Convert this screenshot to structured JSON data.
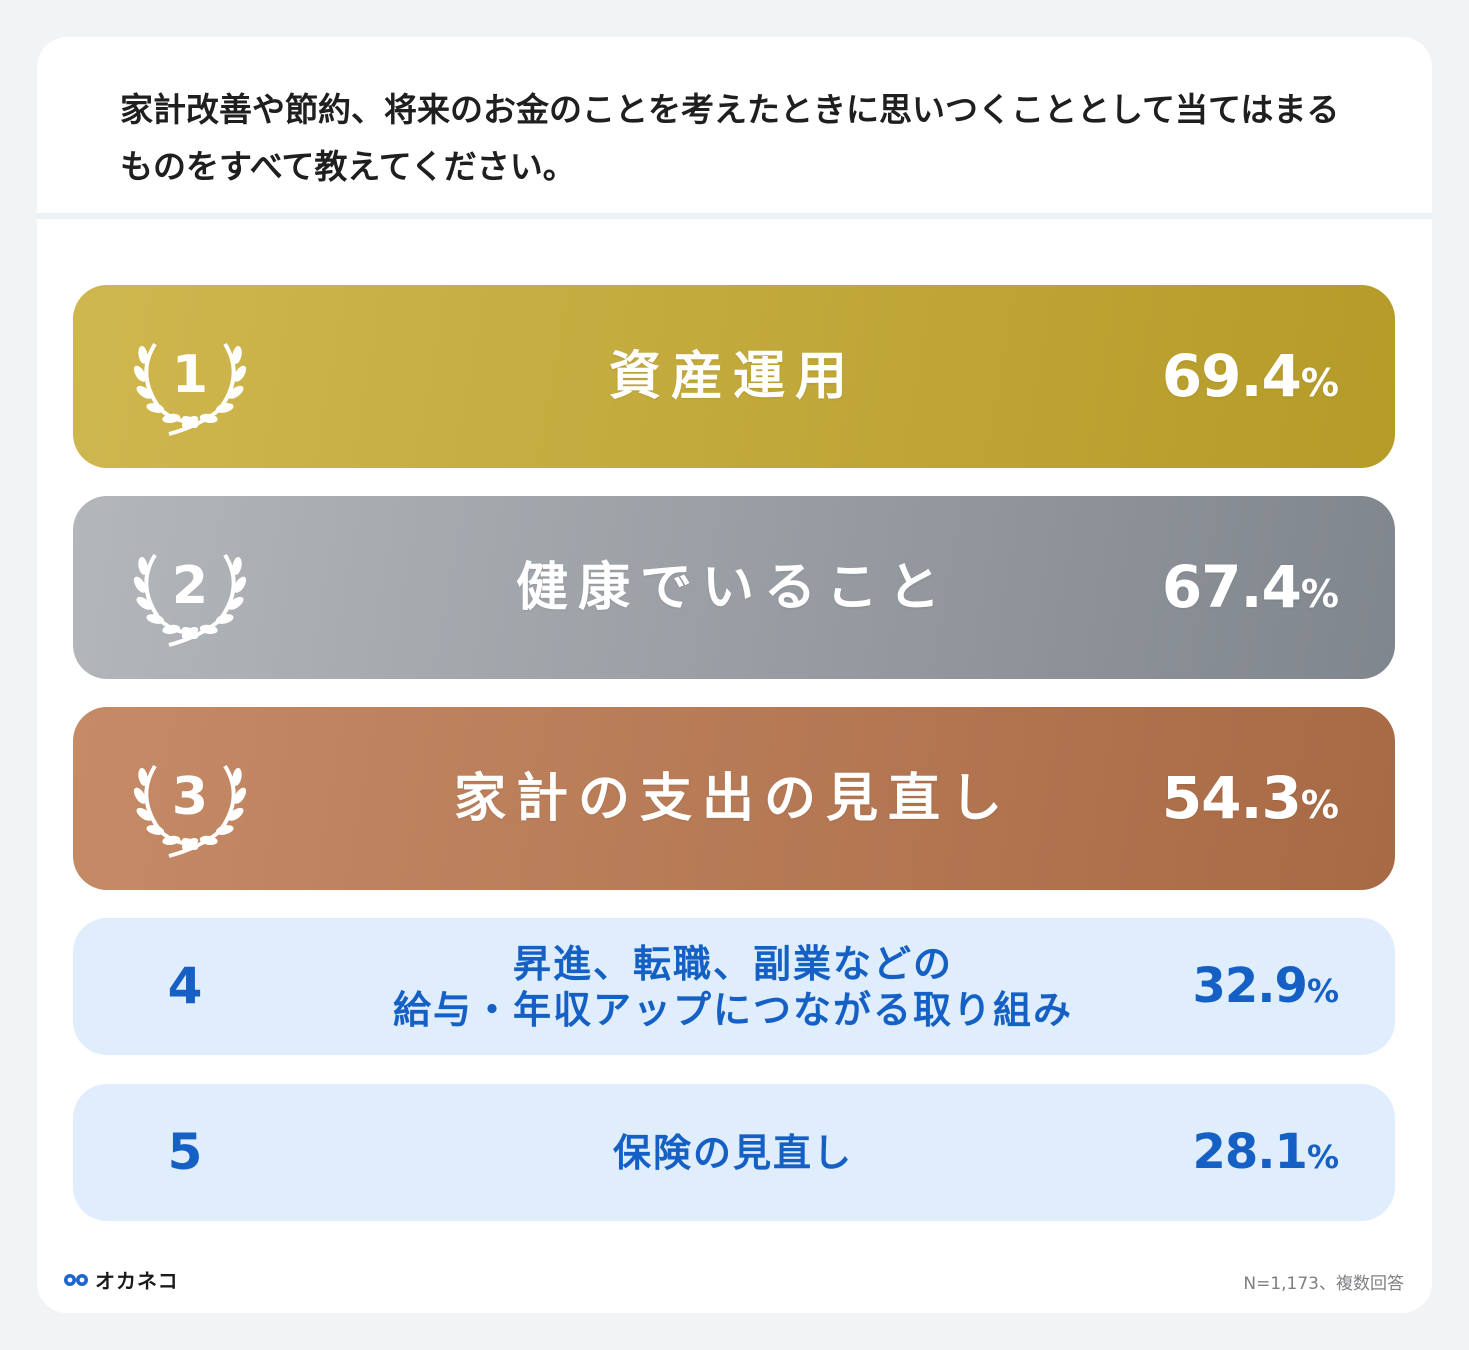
{
  "question": "家計改善や節約、将来のお金のことを考えたときに思いつくこととして当てはまるものをすべて教えてください。",
  "chart_data": {
    "type": "bar",
    "title": "家計改善や節約、将来のお金のことを考えたときに思いつくこととして当てはまるものをすべて教えてください。",
    "unit": "%",
    "items": [
      {
        "rank": "1",
        "label": "資産運用",
        "label_lines": [
          "資産運用"
        ],
        "value": 69.4,
        "value_text": "69.4",
        "style": "gold"
      },
      {
        "rank": "2",
        "label": "健康でいること",
        "label_lines": [
          "健康でいること"
        ],
        "value": 67.4,
        "value_text": "67.4",
        "style": "silver"
      },
      {
        "rank": "3",
        "label": "家計の支出の見直し",
        "label_lines": [
          "家計の支出の見直し"
        ],
        "value": 54.3,
        "value_text": "54.3",
        "style": "bronze"
      },
      {
        "rank": "4",
        "label": "昇進、転職、副業などの給与・年収アップにつながる取り組み",
        "label_lines": [
          "昇進、転職、副業などの",
          "給与・年収アップにつながる取り組み"
        ],
        "value": 32.9,
        "value_text": "32.9",
        "style": "blue"
      },
      {
        "rank": "5",
        "label": "保険の見直し",
        "label_lines": [
          "保険の見直し"
        ],
        "value": 28.1,
        "value_text": "28.1",
        "style": "blue"
      }
    ]
  },
  "colors": {
    "gold": [
      "#cfb74f",
      "#b59b28"
    ],
    "silver": [
      "#b3b7bb",
      "#80868d"
    ],
    "bronze": [
      "#c58a66",
      "#a86a45"
    ],
    "blue": [
      "#e0edfc",
      "#e0edfc"
    ],
    "blue_text": "#1560c4",
    "logo_blue": "#1d66d0"
  },
  "footer": {
    "brand": "オカネコ",
    "logo_icon": "glasses-logo-icon",
    "note": "N=1,173、複数回答"
  }
}
